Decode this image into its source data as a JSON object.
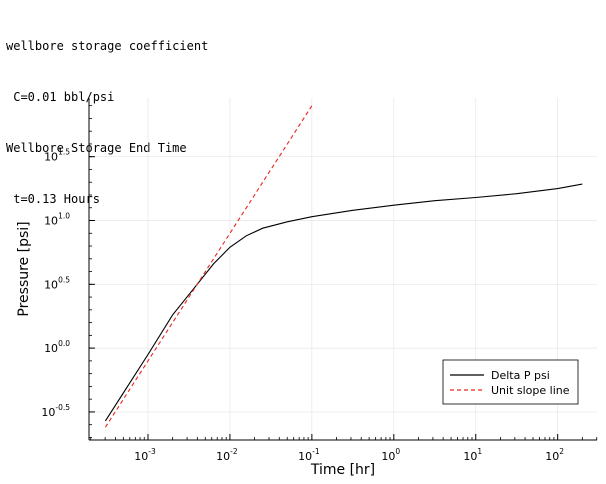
{
  "header_lines": [
    "wellbore storage coefficient",
    " C=0.01 bbl/psi",
    "Wellbore Storage End Time",
    " t=0.13 Hours"
  ],
  "chart_data": {
    "type": "line",
    "xlabel": "Time [hr]",
    "ylabel": "Pressure [psi]",
    "x_scale": "log",
    "y_scale": "log",
    "x_ticks": [
      "-3",
      "-2",
      "-1",
      "0",
      "1",
      "2"
    ],
    "y_ticks": [
      "-0.5",
      "0.0",
      "0.5",
      "1.0",
      "1.5"
    ],
    "xlim_log10": [
      -3.72,
      2.48
    ],
    "ylim_log10": [
      -0.72,
      1.96
    ],
    "grid": true,
    "legend_position": "bottom-right",
    "series": [
      {
        "name": "Delta P psi",
        "color": "#000000",
        "dash": "solid",
        "points_log10": [
          [
            -3.52,
            -0.57
          ],
          [
            -3.0,
            -0.05
          ],
          [
            -2.7,
            0.26
          ],
          [
            -2.4,
            0.5
          ],
          [
            -2.2,
            0.66
          ],
          [
            -2.0,
            0.79
          ],
          [
            -1.8,
            0.88
          ],
          [
            -1.6,
            0.94
          ],
          [
            -1.3,
            0.99
          ],
          [
            -1.0,
            1.03
          ],
          [
            -0.5,
            1.08
          ],
          [
            0.0,
            1.12
          ],
          [
            0.5,
            1.155
          ],
          [
            1.0,
            1.18
          ],
          [
            1.5,
            1.21
          ],
          [
            2.0,
            1.25
          ],
          [
            2.3,
            1.285
          ]
        ]
      },
      {
        "name": "Unit slope line",
        "color": "#e8271e",
        "dash": "dashed",
        "points_log10": [
          [
            -3.52,
            -0.62
          ],
          [
            -1.0,
            1.9
          ]
        ]
      }
    ]
  }
}
